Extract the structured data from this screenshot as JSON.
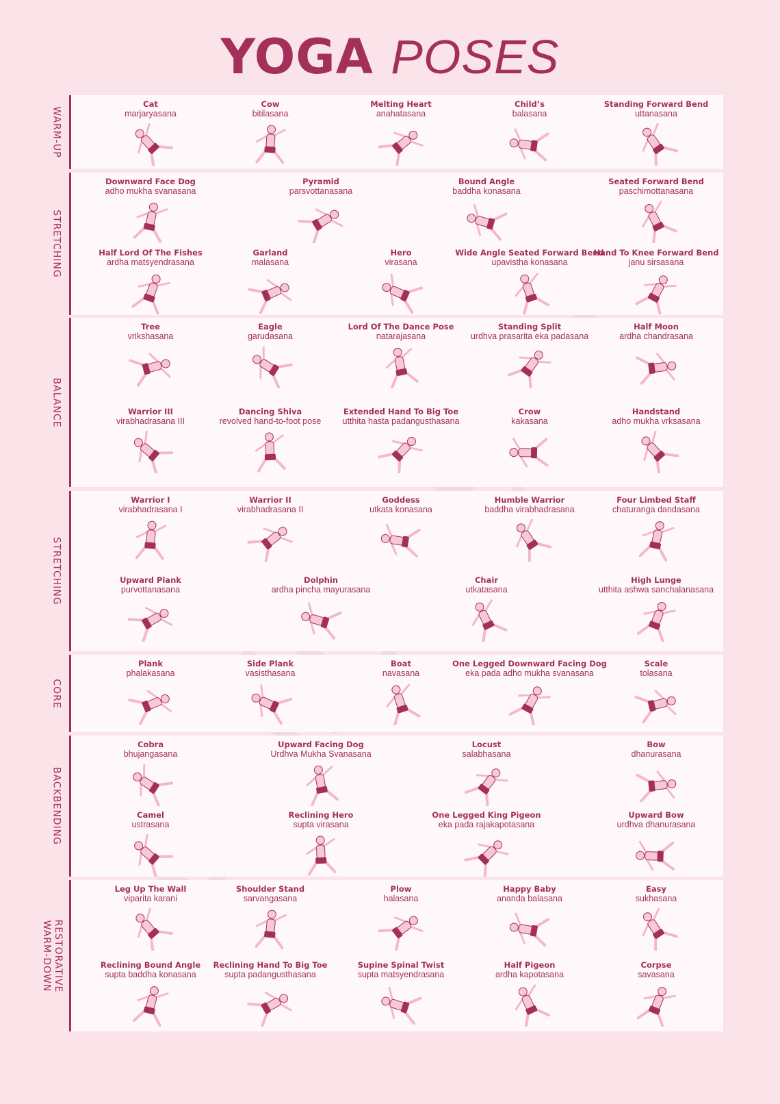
{
  "title": {
    "bold": "YOGA",
    "light": "POSES"
  },
  "watermark": "caliDesign",
  "sections": [
    {
      "label": [
        "WARM-UP"
      ],
      "rows": [
        [
          {
            "name": "Cat",
            "sanskrit": "marjaryasana"
          },
          {
            "name": "Cow",
            "sanskrit": "bitilasana"
          },
          {
            "name": "Melting Heart",
            "sanskrit": "anahatasana"
          },
          {
            "name": "Child’s",
            "sanskrit": "balasana"
          },
          {
            "name": "Standing Forward Bend",
            "sanskrit": "uttanasana"
          }
        ]
      ]
    },
    {
      "label": [
        "STRETCHING"
      ],
      "rows": [
        [
          {
            "name": "Downward Face Dog",
            "sanskrit": "adho mukha svanasana"
          },
          {
            "name": "Pyramid",
            "sanskrit": "parsvottanasana"
          },
          {
            "name": "Bound Angle",
            "sanskrit": "baddha konasana"
          },
          {
            "name": "Seated Forward Bend",
            "sanskrit": "paschimottanasana"
          }
        ],
        [
          {
            "name": "Half Lord Of The Fishes",
            "sanskrit": "ardha matsyendrasana"
          },
          {
            "name": "Garland",
            "sanskrit": "malasana"
          },
          {
            "name": "Hero",
            "sanskrit": "virasana"
          },
          {
            "name": "Wide Angle Seated Forward Bend",
            "sanskrit": "upavistha konasana"
          },
          {
            "name": "Hand To Knee Forward Bend",
            "sanskrit": "janu sirsasana"
          }
        ]
      ]
    },
    {
      "label": [
        "BALANCE"
      ],
      "rows": [
        [
          {
            "name": "Tree",
            "sanskrit": "vrikshasana"
          },
          {
            "name": "Eagle",
            "sanskrit": "garudasana"
          },
          {
            "name": "Lord Of The Dance Pose",
            "sanskrit": "natarajasana"
          },
          {
            "name": "Standing Split",
            "sanskrit": "urdhva prasarita eka padasana"
          },
          {
            "name": "Half Moon",
            "sanskrit": "ardha chandrasana"
          }
        ],
        [
          {
            "name": "Warrior III",
            "sanskrit": "virabhadrasana III"
          },
          {
            "name": "Dancing Shiva",
            "sanskrit": "revolved hand-to-foot pose"
          },
          {
            "name": "Extended Hand To Big Toe",
            "sanskrit": "utthita hasta padangusthasana"
          },
          {
            "name": "Crow",
            "sanskrit": "kakasana"
          },
          {
            "name": "Handstand",
            "sanskrit": "adho mukha vrksasana"
          }
        ]
      ]
    },
    {
      "label": [
        "STRETCHING"
      ],
      "rows": [
        [
          {
            "name": "Warrior I",
            "sanskrit": "virabhadrasana I"
          },
          {
            "name": "Warrior II",
            "sanskrit": "virabhadrasana II"
          },
          {
            "name": "Goddess",
            "sanskrit": "utkata konasana"
          },
          {
            "name": "Humble Warrior",
            "sanskrit": "baddha virabhadrasana"
          },
          {
            "name": "Four Limbed Staff",
            "sanskrit": "chaturanga dandasana"
          }
        ],
        [
          {
            "name": "Upward Plank",
            "sanskrit": "purvottanasana"
          },
          {
            "name": "Dolphin",
            "sanskrit": "ardha pincha mayurasana"
          },
          {
            "name": "Chair",
            "sanskrit": "utkatasana"
          },
          {
            "name": "High Lunge",
            "sanskrit": "utthita ashwa sanchalanasana"
          }
        ]
      ]
    },
    {
      "label": [
        "CORE"
      ],
      "rows": [
        [
          {
            "name": "Plank",
            "sanskrit": "phalakasana"
          },
          {
            "name": "Side Plank",
            "sanskrit": "vasisthasana"
          },
          {
            "name": "Boat",
            "sanskrit": "navasana"
          },
          {
            "name": "One Legged Downward Facing Dog",
            "sanskrit": "eka pada adho mukha svanasana"
          },
          {
            "name": "Scale",
            "sanskrit": "tolasana"
          }
        ]
      ]
    },
    {
      "label": [
        "BACKBENDING"
      ],
      "rows": [
        [
          {
            "name": "Cobra",
            "sanskrit": "bhujangasana"
          },
          {
            "name": "Upward Facing Dog",
            "sanskrit": "Urdhva Mukha Svanasana"
          },
          {
            "name": "Locust",
            "sanskrit": "salabhasana"
          },
          {
            "name": "Bow",
            "sanskrit": "dhanurasana"
          }
        ],
        [
          {
            "name": "Camel",
            "sanskrit": "ustrasana"
          },
          {
            "name": "Reclining Hero",
            "sanskrit": "supta virasana"
          },
          {
            "name": "One Legged King Pigeon",
            "sanskrit": "eka pada rajakapotasana"
          },
          {
            "name": "Upward Bow",
            "sanskrit": "urdhva dhanurasana"
          }
        ]
      ]
    },
    {
      "label": [
        "RESTORATIVE",
        "WARM-DOWN"
      ],
      "rows": [
        [
          {
            "name": "Leg Up The Wall",
            "sanskrit": "viparita karani"
          },
          {
            "name": "Shoulder Stand",
            "sanskrit": "sarvangasana"
          },
          {
            "name": "Plow",
            "sanskrit": "halasana"
          },
          {
            "name": "Happy Baby",
            "sanskrit": "ananda balasana"
          },
          {
            "name": "Easy",
            "sanskrit": "sukhasana"
          }
        ],
        [
          {
            "name": "Reclining Bound Angle",
            "sanskrit": "supta baddha konasana"
          },
          {
            "name": "Reclining Hand To Big Toe",
            "sanskrit": "supta padangusthasana"
          },
          {
            "name": "Supine Spinal Twist",
            "sanskrit": "supta matsyendrasana"
          },
          {
            "name": "Half Pigeon",
            "sanskrit": "ardha kapotasana"
          },
          {
            "name": "Corpse",
            "sanskrit": "savasana"
          }
        ]
      ]
    }
  ]
}
